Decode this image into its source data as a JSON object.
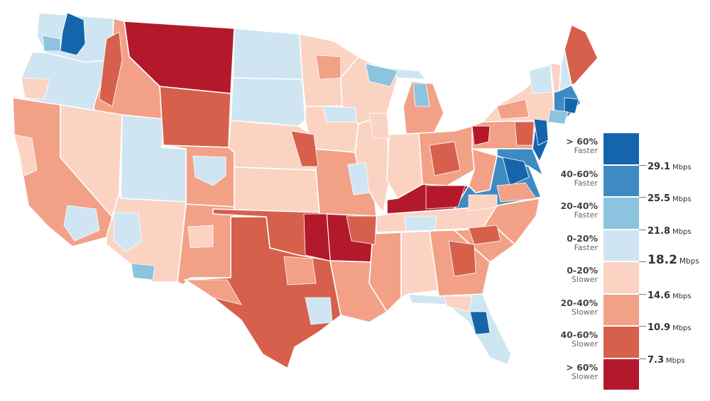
{
  "colors": {
    "faster_60": "#1565ad",
    "faster_40_60": "#3e8bc4",
    "faster_20_40": "#8cc3df",
    "faster_0_20": "#cfe6f2",
    "slower_0_20": "#fbd3c2",
    "slower_20_40": "#f2a187",
    "slower_40_60": "#d6604c",
    "slower_60": "#b3192b"
  },
  "legend": {
    "bins": [
      {
        "label": "> 60%",
        "sub": "Faster",
        "color": "#1565ad"
      },
      {
        "label": "40-60%",
        "sub": "Faster",
        "color": "#3e8bc4"
      },
      {
        "label": "20-40%",
        "sub": "Faster",
        "color": "#8cc3df"
      },
      {
        "label": "0-20%",
        "sub": "Faster",
        "color": "#cfe6f2"
      },
      {
        "label": "0-20%",
        "sub": "Slower",
        "color": "#fbd3c2"
      },
      {
        "label": "20-40%",
        "sub": "Slower",
        "color": "#f2a187"
      },
      {
        "label": "40-60%",
        "sub": "Slower",
        "color": "#d6604c"
      },
      {
        "label": "> 60%",
        "sub": "Slower",
        "color": "#b3192b"
      }
    ],
    "thresholds": [
      {
        "value": "29.1",
        "unit": "Mbps"
      },
      {
        "value": "25.5",
        "unit": "Mbps"
      },
      {
        "value": "21.8",
        "unit": "Mbps"
      },
      {
        "value": "18.2",
        "unit": "Mbps",
        "emphasis": true
      },
      {
        "value": "14.6",
        "unit": "Mbps"
      },
      {
        "value": "10.9",
        "unit": "Mbps"
      },
      {
        "value": "7.3",
        "unit": "Mbps"
      }
    ]
  },
  "map": {
    "regions": [
      {
        "name": "washington",
        "color": "#cfe6f2"
      },
      {
        "name": "oregon",
        "color": "#cfe6f2"
      },
      {
        "name": "california",
        "color": "#f2a187"
      },
      {
        "name": "idaho",
        "color": "#f2a187"
      },
      {
        "name": "nevada",
        "color": "#fbd3c2"
      },
      {
        "name": "utah",
        "color": "#cfe6f2"
      },
      {
        "name": "arizona",
        "color": "#fbd3c2"
      },
      {
        "name": "montana",
        "color": "#b3192b"
      },
      {
        "name": "wyoming",
        "color": "#d6604c"
      },
      {
        "name": "colorado",
        "color": "#f2a187"
      },
      {
        "name": "new-mexico",
        "color": "#f2a187"
      },
      {
        "name": "north-dakota",
        "color": "#cfe6f2"
      },
      {
        "name": "south-dakota",
        "color": "#cfe6f2"
      },
      {
        "name": "nebraska",
        "color": "#fbd3c2"
      },
      {
        "name": "kansas",
        "color": "#fbd3c2"
      },
      {
        "name": "oklahoma",
        "color": "#d6604c"
      },
      {
        "name": "texas",
        "color": "#d6604c"
      },
      {
        "name": "minnesota",
        "color": "#fbd3c2"
      },
      {
        "name": "iowa",
        "color": "#fbd3c2"
      },
      {
        "name": "missouri",
        "color": "#f2a187"
      },
      {
        "name": "arkansas",
        "color": "#b3192b"
      },
      {
        "name": "louisiana",
        "color": "#f2a187"
      },
      {
        "name": "wisconsin",
        "color": "#fbd3c2"
      },
      {
        "name": "illinois",
        "color": "#fbd3c2"
      },
      {
        "name": "michigan",
        "color": "#f2a187"
      },
      {
        "name": "michigan-up",
        "color": "#cfe6f2"
      },
      {
        "name": "indiana",
        "color": "#fbd3c2"
      },
      {
        "name": "ohio",
        "color": "#f2a187"
      },
      {
        "name": "kentucky",
        "color": "#b3192b"
      },
      {
        "name": "tennessee",
        "color": "#fbd3c2"
      },
      {
        "name": "mississippi",
        "color": "#f2a187"
      },
      {
        "name": "alabama",
        "color": "#fbd3c2"
      },
      {
        "name": "georgia",
        "color": "#f2a187"
      },
      {
        "name": "florida",
        "color": "#cfe6f2"
      },
      {
        "name": "south-carolina",
        "color": "#f2a187"
      },
      {
        "name": "north-carolina",
        "color": "#f2a187"
      },
      {
        "name": "virginia",
        "color": "#3e8bc4"
      },
      {
        "name": "west-virginia",
        "color": "#f2a187"
      },
      {
        "name": "pennsylvania",
        "color": "#f2a187"
      },
      {
        "name": "new-york",
        "color": "#fbd3c2"
      },
      {
        "name": "maryland",
        "color": "#3e8bc4"
      },
      {
        "name": "new-jersey",
        "color": "#1565ad"
      },
      {
        "name": "vermont",
        "color": "#fbd3c2"
      },
      {
        "name": "new-hampshire",
        "color": "#cfe6f2"
      },
      {
        "name": "maine",
        "color": "#d6604c"
      },
      {
        "name": "massachusetts",
        "color": "#3e8bc4"
      }
    ]
  }
}
